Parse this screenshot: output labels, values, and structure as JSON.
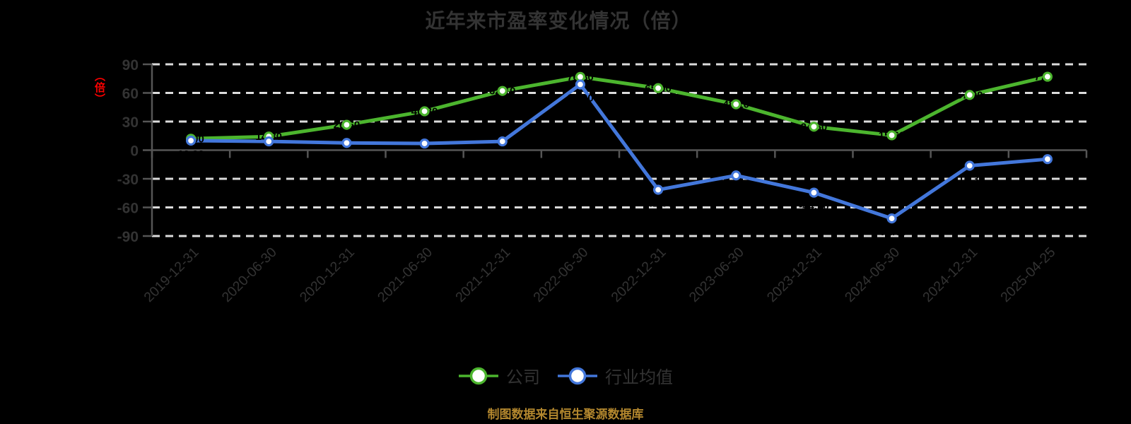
{
  "y_axis_unit": "（倍）",
  "source_note": "制图数据来自恒生聚源数据库",
  "colors": {
    "background": "#000000",
    "title_text": "#333333",
    "axis_text": "#333333",
    "axis_line": "#555555",
    "gridline": "#DCDCDC",
    "unit_label": "#FF0000",
    "source_text": "#B3872E",
    "marker_fill": "#FFFFFF",
    "point_label": "#000000",
    "company": "#4CB52E",
    "industry": "#4377DB"
  },
  "chart_data": {
    "type": "line",
    "title": "近年来市盈率变化情况（倍）",
    "xlabel": "",
    "ylabel": "（倍）",
    "ylim": [
      -90,
      90
    ],
    "yticks": [
      90,
      60,
      30,
      0,
      -30,
      -60,
      -90
    ],
    "grid": "dashed-horizontal",
    "legend_position": "bottom",
    "categories": [
      "2019-12-31",
      "2020-06-30",
      "2020-12-31",
      "2021-06-30",
      "2021-12-31",
      "2022-06-30",
      "2022-12-31",
      "2023-06-30",
      "2023-12-31",
      "2024-06-30",
      "2024-12-31",
      "2025-04-25"
    ],
    "series": [
      {
        "name": "公司",
        "color": "#4CB52E",
        "values": [
          12.0,
          14.3,
          26.6,
          40.8,
          62.1,
          76.8,
          65.0,
          48.1,
          24.6,
          15.6,
          57.9,
          77.0
        ]
      },
      {
        "name": "行业均值",
        "color": "#4377DB",
        "values": [
          10.0,
          9.2,
          7.6,
          7.0,
          9.2,
          68.9,
          -41.5,
          -26.5,
          -44.5,
          -71.6,
          -16.3,
          -9.4
        ]
      }
    ]
  }
}
